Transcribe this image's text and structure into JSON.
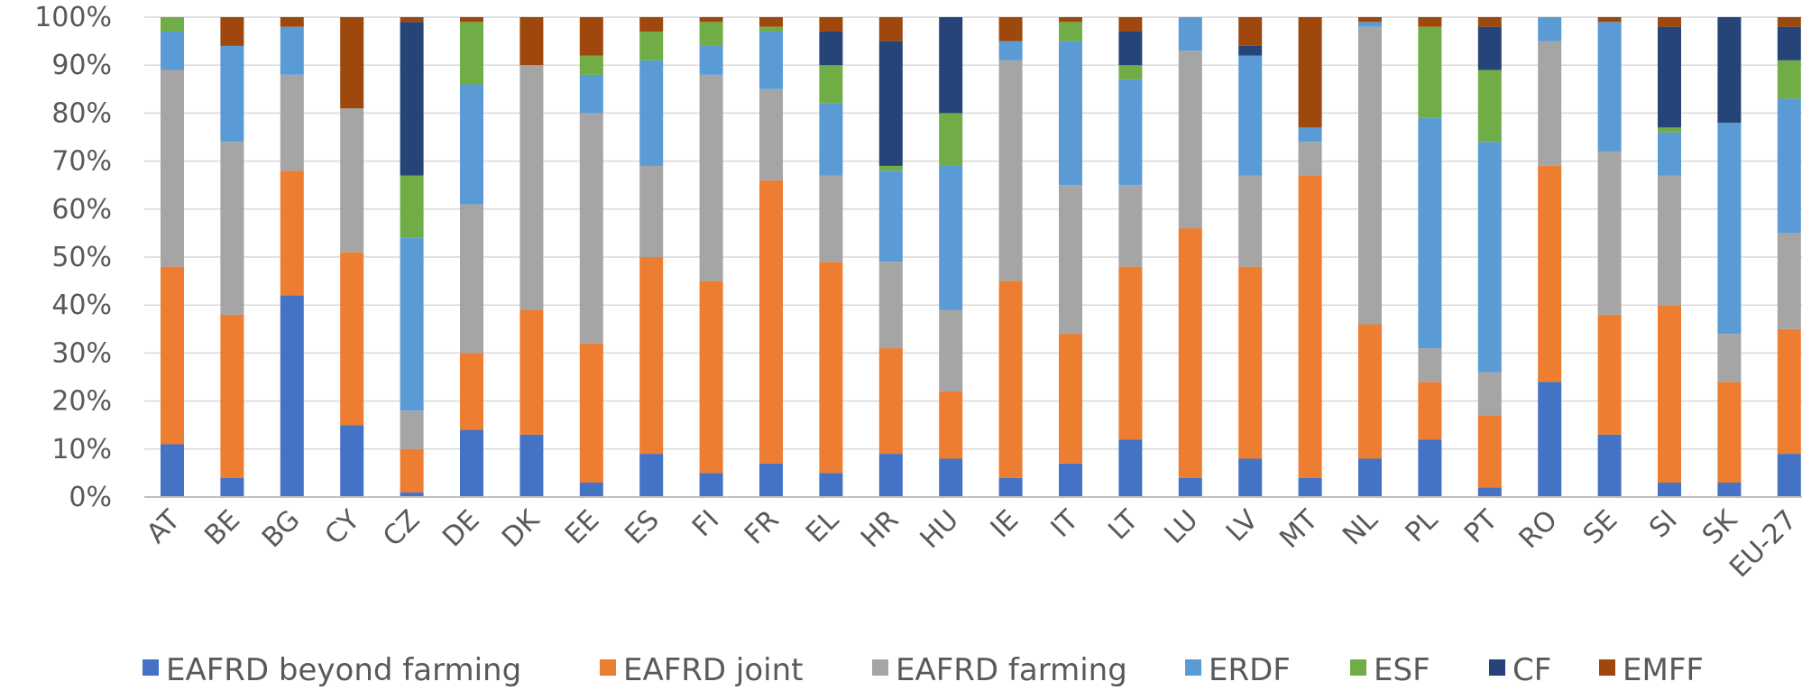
{
  "chart_data": {
    "type": "bar",
    "stacked": true,
    "percent_stacked": true,
    "categories": [
      "AT",
      "BE",
      "BG",
      "CY",
      "CZ",
      "DE",
      "DK",
      "EE",
      "ES",
      "FI",
      "FR",
      "EL",
      "HR",
      "HU",
      "IE",
      "IT",
      "LT",
      "LU",
      "LV",
      "MT",
      "NL",
      "PL",
      "PT",
      "RO",
      "SE",
      "SI",
      "SK",
      "EU-27"
    ],
    "series": [
      {
        "name": "EAFRD beyond farming",
        "color": "#4472C4",
        "values": [
          11,
          4,
          42,
          15,
          1,
          14,
          13,
          3,
          9,
          5,
          7,
          5,
          9,
          8,
          4,
          7,
          12,
          4,
          8,
          4,
          8,
          12,
          2,
          24,
          13,
          3,
          3,
          9
        ]
      },
      {
        "name": "EAFRD joint",
        "color": "#ED7D31",
        "values": [
          37,
          34,
          26,
          36,
          9,
          16,
          26,
          29,
          41,
          40,
          59,
          44,
          22,
          14,
          41,
          27,
          36,
          52,
          40,
          63,
          28,
          12,
          15,
          45,
          25,
          37,
          21,
          26
        ]
      },
      {
        "name": "EAFRD farming",
        "color": "#A5A5A5",
        "values": [
          41,
          36,
          20,
          30,
          8,
          31,
          51,
          48,
          19,
          43,
          19,
          18,
          18,
          17,
          46,
          31,
          17,
          37,
          19,
          7,
          62,
          7,
          9,
          26,
          34,
          27,
          10,
          20
        ]
      },
      {
        "name": "ERDF",
        "color": "#5B9BD5",
        "values": [
          8,
          20,
          10,
          0,
          36,
          25,
          0,
          8,
          22,
          6,
          12,
          15,
          19,
          30,
          4,
          30,
          22,
          7,
          25,
          3,
          1,
          48,
          48,
          5,
          27,
          9,
          44,
          28
        ]
      },
      {
        "name": "ESF",
        "color": "#70AD47",
        "values": [
          3,
          0,
          0,
          0,
          13,
          13,
          0,
          4,
          6,
          5,
          1,
          8,
          1,
          11,
          0,
          4,
          3,
          0,
          0,
          0,
          0,
          19,
          15,
          0,
          0,
          1,
          0,
          8
        ]
      },
      {
        "name": "CF",
        "color": "#264478",
        "values": [
          0,
          0,
          0,
          0,
          32,
          0,
          0,
          0,
          0,
          0,
          0,
          7,
          26,
          20,
          0,
          0,
          7,
          0,
          2,
          0,
          0,
          0,
          9,
          0,
          0,
          21,
          22,
          7
        ]
      },
      {
        "name": "EMFF",
        "color": "#9E480E",
        "values": [
          0,
          6,
          2,
          19,
          1,
          1,
          10,
          8,
          3,
          1,
          2,
          3,
          5,
          0,
          5,
          1,
          3,
          0,
          6,
          23,
          1,
          2,
          2,
          0,
          1,
          2,
          0,
          2
        ]
      }
    ],
    "yticks": [
      "0%",
      "10%",
      "20%",
      "30%",
      "40%",
      "50%",
      "60%",
      "70%",
      "80%",
      "90%",
      "100%"
    ],
    "ylim": [
      0,
      100
    ],
    "grid": true,
    "legend_position": "bottom"
  }
}
